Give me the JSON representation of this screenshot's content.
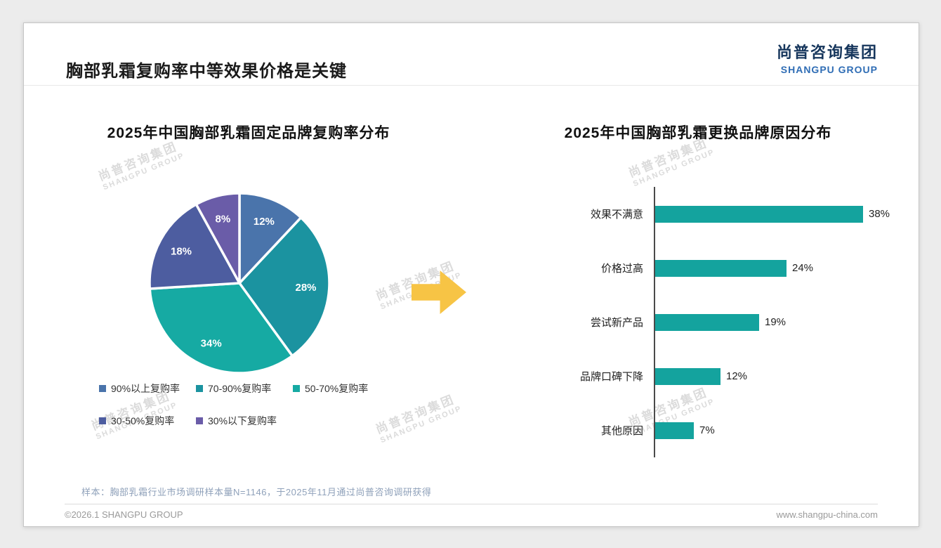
{
  "page": {
    "title": "胸部乳霜复购率中等效果价格是关键",
    "logo": {
      "cn": "尚普咨询集团",
      "en": "SHANGPU GROUP"
    },
    "footnote": "样本：胸部乳霜行业市场调研样本量N=1146，于2025年11月通过尚普咨询调研获得",
    "footer_left": "©2026.1 SHANGPU GROUP",
    "footer_right": "www.shangpu-china.com",
    "watermark": {
      "line1": "尚普咨询集团",
      "line2": "SHANGPU GROUP"
    }
  },
  "colors": {
    "accent_arrow": "#f7c445",
    "logo_blue": "#2f6db5",
    "logo_navy": "#16365c"
  },
  "chart_data": [
    {
      "type": "pie",
      "title": "2025年中国胸部乳霜固定品牌复购率分布",
      "labels": [
        "90%以上复购率",
        "70-90%复购率",
        "50-70%复购率",
        "30-50%复购率",
        "30%以下复购率"
      ],
      "values": [
        12,
        28,
        34,
        18,
        8
      ],
      "value_labels": [
        "12%",
        "28%",
        "34%",
        "18%",
        "8%"
      ],
      "colors": [
        "#4a74ab",
        "#1b93a0",
        "#16aaa3",
        "#4d5da0",
        "#6a5ca8"
      ],
      "legend_rows": [
        3,
        2
      ],
      "legend_position": "bottom",
      "start_angle_deg": -90,
      "direction": "clockwise"
    },
    {
      "type": "bar",
      "orientation": "horizontal",
      "title": "2025年中国胸部乳霜更换品牌原因分布",
      "categories": [
        "效果不满意",
        "价格过高",
        "尝试新产品",
        "品牌口碑下降",
        "其他原因"
      ],
      "values": [
        38,
        24,
        19,
        12,
        7
      ],
      "value_labels": [
        "38%",
        "24%",
        "19%",
        "12%",
        "7%"
      ],
      "bar_color": "#14a39e",
      "axis_color": "#4a4a4a",
      "xlim": [
        0,
        40
      ],
      "grid": false,
      "value_label_position": "outside-end"
    }
  ]
}
